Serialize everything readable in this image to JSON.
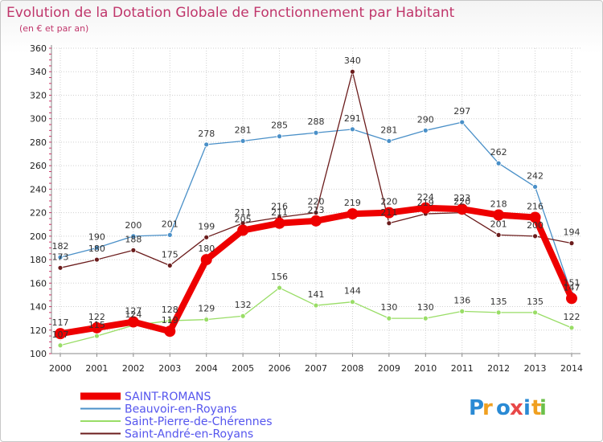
{
  "chart_data": {
    "type": "line",
    "title": "Evolution de la Dotation Globale de Fonctionnement par Habitant",
    "subtitle": "(en € et par an)",
    "xlabel": "",
    "ylabel": "",
    "x": [
      2000,
      2001,
      2002,
      2003,
      2004,
      2005,
      2006,
      2007,
      2008,
      2009,
      2010,
      2011,
      2012,
      2013,
      2014
    ],
    "ylim": [
      100,
      360
    ],
    "yticks": [
      100,
      120,
      140,
      160,
      180,
      200,
      220,
      240,
      260,
      280,
      300,
      320,
      340,
      360
    ],
    "grid": true,
    "legend_position": "bottom-left",
    "series": [
      {
        "name": "Beauvoir-en-Royans",
        "color": "#4a90c8",
        "values": [
          182,
          190,
          200,
          201,
          278,
          281,
          285,
          288,
          291,
          281,
          290,
          297,
          262,
          242,
          151
        ]
      },
      {
        "name": "Saint-André-en-Royans",
        "color": "#6b1c1c",
        "values": [
          173,
          180,
          188,
          175,
          199,
          211,
          216,
          220,
          340,
          211,
          219,
          220,
          201,
          200,
          194
        ]
      },
      {
        "name": "Saint-Pierre-de-Chérennes",
        "color": "#99dd66",
        "values": [
          107,
          115,
          124,
          128,
          129,
          132,
          156,
          141,
          144,
          130,
          130,
          136,
          135,
          135,
          122
        ]
      },
      {
        "name": "SAINT-ROMANS",
        "color": "#ee0000",
        "values": [
          117,
          122,
          127,
          119,
          180,
          205,
          211,
          213,
          219,
          220,
          224,
          223,
          218,
          216,
          147
        ]
      }
    ],
    "legend_order": [
      "SAINT-ROMANS",
      "Beauvoir-en-Royans",
      "Saint-Pierre-de-Chérennes",
      "Saint-André-en-Royans"
    ],
    "legend_text_color": "#5555ee"
  },
  "logo": {
    "text": "Proxiti",
    "colors": [
      "#2a8ad4",
      "#f0a020",
      "#2a8ad4",
      "#e84848",
      "#2a8ad4",
      "#f0a020",
      "#6cc04a"
    ]
  }
}
